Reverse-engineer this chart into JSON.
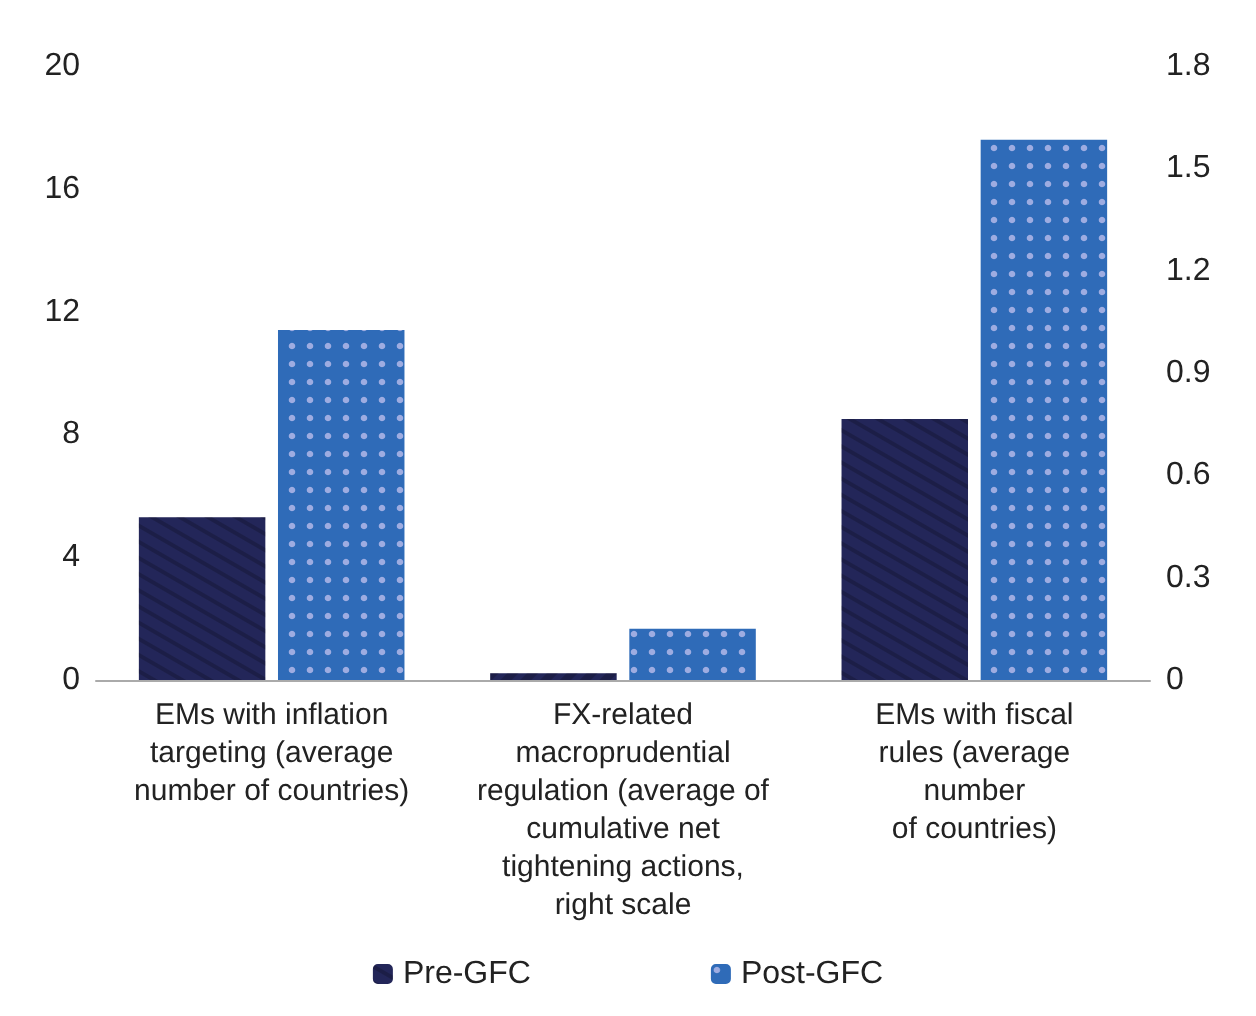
{
  "chart_data": {
    "type": "bar",
    "categories": [
      "EMs with inflation\ntargeting (average\nnumber of countries)",
      "FX-related\nmacroprudential\nregulation (average of\ncumulative net\ntightening actions,\nright scale",
      "EMs with fiscal\nrules (average\nnumber\nof countries)"
    ],
    "series": [
      {
        "name": "Pre-GFC",
        "color": "#232659",
        "values": [
          5.3,
          null,
          8.5
        ]
      },
      {
        "name": "Post-GFC",
        "color": "#2f6bb8",
        "values": [
          11.4,
          null,
          17.6
        ]
      },
      {
        "color": "#232659",
        "axis": "y2",
        "values": [
          null,
          0.02,
          null
        ]
      },
      {
        "color": "#2f6bb8",
        "axis": "y2",
        "values": [
          null,
          0.15,
          null
        ]
      }
    ],
    "ylim": [
      0,
      20
    ],
    "yticks": [
      0,
      4,
      8,
      12,
      16,
      20
    ],
    "y2lim": [
      0,
      1.8
    ],
    "y2ticks": [
      0,
      0.3,
      0.6,
      0.9,
      1.2,
      1.5,
      1.8
    ],
    "grid": false,
    "legend": "bottom"
  }
}
